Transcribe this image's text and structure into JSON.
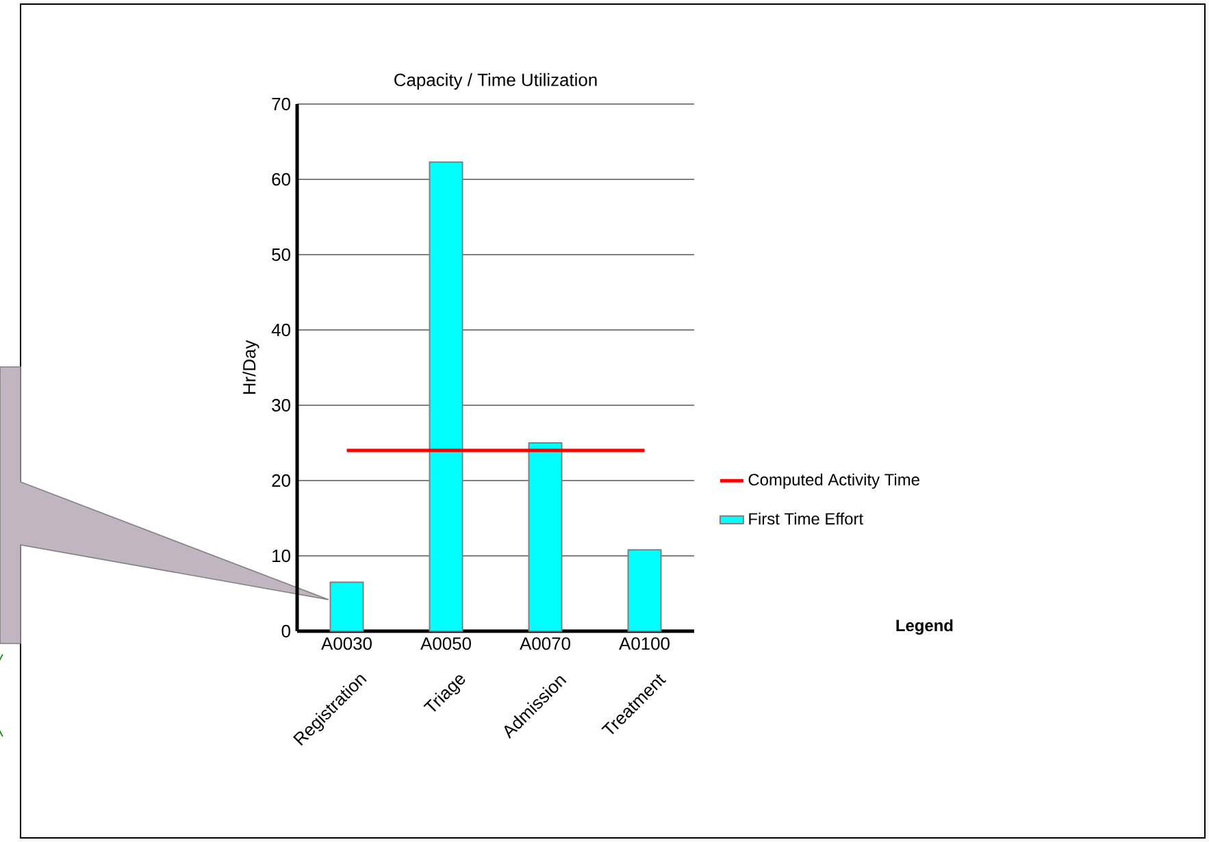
{
  "chart_data": {
    "type": "bar",
    "title": "Capacity / Time Utilization",
    "ylabel": "Hr/Day",
    "categories": [
      "A0030",
      "A0050",
      "A0070",
      "A0100"
    ],
    "annotations": [
      "Registration",
      "Triage",
      "Admission",
      "Treatment"
    ],
    "series": [
      {
        "name": "First Time Effort",
        "color": "#00ffff",
        "values": [
          6.5,
          62.3,
          25,
          10.8
        ]
      },
      {
        "name": "Computed Activity Time",
        "type": "line",
        "color": "#ff0000",
        "values": [
          24,
          24,
          24,
          24
        ]
      }
    ],
    "ylim": [
      0,
      70
    ],
    "yticks": [
      0,
      10,
      20,
      30,
      40,
      50,
      60,
      70
    ],
    "grid": "y",
    "legend": "right",
    "legend_title": "Legend"
  }
}
